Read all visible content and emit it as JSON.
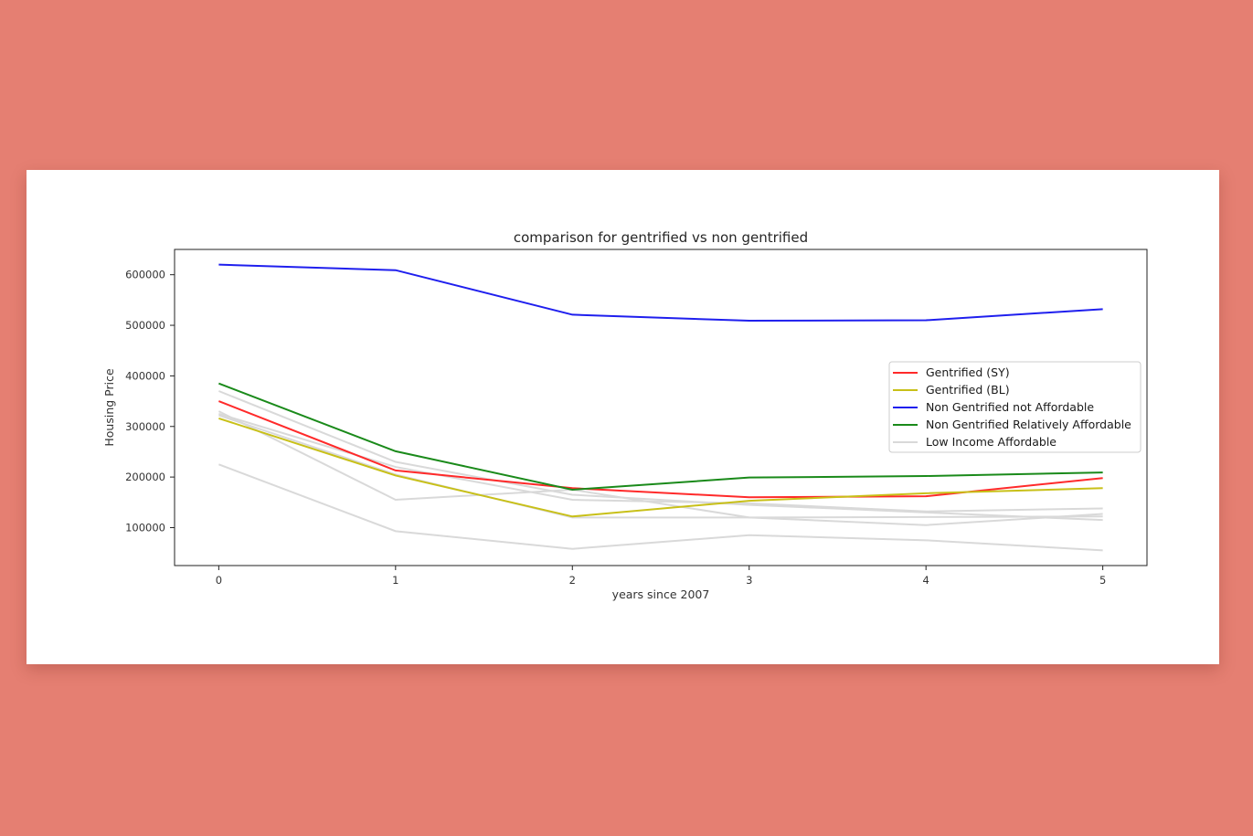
{
  "chart_data": {
    "type": "line",
    "title": "comparison for gentrified vs non gentrified",
    "xlabel": "years since 2007",
    "ylabel": "Housing Price",
    "x": [
      0,
      1,
      2,
      3,
      4,
      5
    ],
    "xlim": [
      -0.25,
      5.25
    ],
    "ylim": [
      25000,
      650000
    ],
    "xticks": [
      "0",
      "1",
      "2",
      "3",
      "4",
      "5"
    ],
    "yticks": [
      {
        "value": 100000,
        "label": "100000"
      },
      {
        "value": 200000,
        "label": "200000"
      },
      {
        "value": 300000,
        "label": "300000"
      },
      {
        "value": 400000,
        "label": "400000"
      },
      {
        "value": 500000,
        "label": "500000"
      },
      {
        "value": 600000,
        "label": "600000"
      }
    ],
    "grid": false,
    "legend_position": "center-right",
    "background_series": [
      {
        "color": "#d9d9d9",
        "values": [
          370000,
          230000,
          165000,
          145000,
          130000,
          115000
        ]
      },
      {
        "color": "#d9d9d9",
        "values": [
          330000,
          155000,
          175000,
          120000,
          105000,
          127000
        ]
      },
      {
        "color": "#d9d9d9",
        "values": [
          325000,
          220000,
          155000,
          148000,
          132000,
          138000
        ]
      },
      {
        "color": "#d9d9d9",
        "values": [
          322000,
          205000,
          120000,
          120000,
          121000,
          122000
        ]
      },
      {
        "color": "#d9d9d9",
        "values": [
          225000,
          93000,
          58000,
          85000,
          75000,
          55000
        ]
      }
    ],
    "series": [
      {
        "name": "Gentrified (SY)",
        "color": "#ff2a2a",
        "values": [
          350000,
          213000,
          178000,
          160000,
          162000,
          198000
        ]
      },
      {
        "name": "Gentrified (BL)",
        "color": "#c8c018",
        "values": [
          316000,
          203000,
          122000,
          153000,
          168000,
          178000
        ]
      },
      {
        "name": "Non Gentrified not Affordable",
        "color": "#1f1fee",
        "values": [
          620000,
          609000,
          521000,
          509000,
          510000,
          532000
        ]
      },
      {
        "name": "Non Gentrified Relatively Affordable",
        "color": "#1a8a1a",
        "values": [
          385000,
          251000,
          175000,
          199000,
          202000,
          209000
        ]
      }
    ],
    "legend": [
      {
        "name": "Gentrified (SY)",
        "color": "#ff2a2a"
      },
      {
        "name": "Gentrified (BL)",
        "color": "#c8c018"
      },
      {
        "name": "Non Gentrified not Affordable",
        "color": "#1f1fee"
      },
      {
        "name": "Non Gentrified Relatively Affordable",
        "color": "#1a8a1a"
      },
      {
        "name": "Low Income Affordable",
        "color": "#d9d9d9"
      }
    ]
  }
}
